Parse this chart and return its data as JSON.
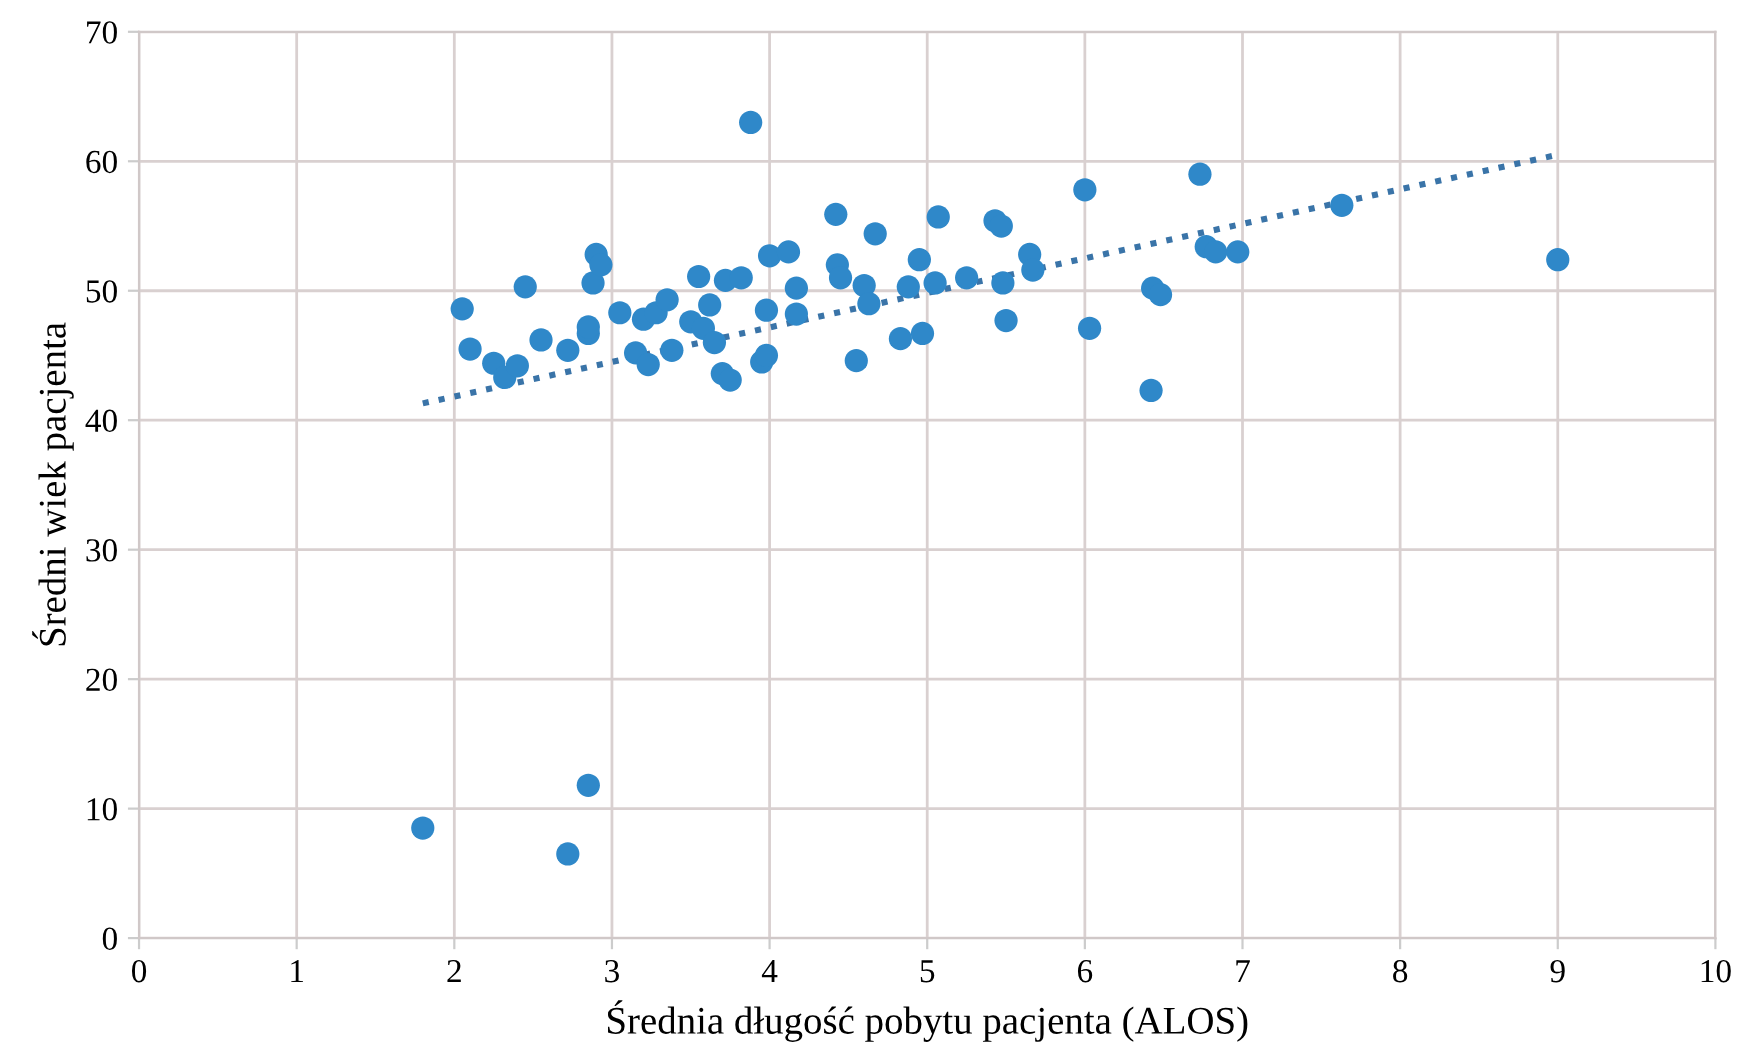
{
  "chart_data": {
    "type": "scatter",
    "xlabel": "Średnia długość pobytu pacjenta (ALOS)",
    "ylabel": "Średni wiek pacjenta",
    "xlim": [
      0,
      10
    ],
    "ylim": [
      0,
      70
    ],
    "xticks": [
      0,
      1,
      2,
      3,
      4,
      5,
      6,
      7,
      8,
      9,
      10
    ],
    "yticks": [
      0,
      10,
      20,
      30,
      40,
      50,
      60,
      70
    ],
    "grid": true,
    "legend": false,
    "series": [
      {
        "color": "#2f88c9",
        "marker": "circle",
        "x": [
          1.8,
          2.72,
          2.85,
          2.05,
          2.1,
          2.25,
          2.32,
          2.4,
          2.45,
          2.55,
          2.72,
          2.85,
          2.85,
          2.88,
          2.9,
          2.93,
          3.05,
          3.15,
          3.2,
          3.23,
          3.28,
          3.35,
          3.38,
          3.5,
          3.55,
          3.58,
          3.62,
          3.65,
          3.7,
          3.75,
          3.72,
          3.82,
          3.88,
          3.95,
          3.98,
          3.98,
          4.0,
          4.12,
          4.17,
          4.17,
          4.42,
          4.43,
          4.45,
          4.55,
          4.6,
          4.63,
          4.67,
          4.83,
          4.88,
          4.95,
          4.97,
          5.05,
          5.07,
          5.25,
          5.43,
          5.47,
          5.48,
          5.5,
          5.65,
          5.67,
          6.0,
          6.03,
          6.42,
          6.43,
          6.48,
          6.73,
          6.77,
          6.83,
          6.97,
          7.63,
          9.0
        ],
        "values": [
          8.5,
          6.5,
          11.8,
          48.6,
          45.5,
          44.4,
          43.3,
          44.2,
          50.3,
          46.2,
          45.4,
          46.7,
          47.2,
          50.6,
          52.8,
          52,
          48.3,
          45.2,
          47.8,
          44.3,
          48.3,
          49.3,
          45.4,
          47.6,
          51.1,
          47.1,
          48.9,
          46,
          43.6,
          43.1,
          50.8,
          51,
          63,
          44.5,
          45,
          48.5,
          52.7,
          53,
          50.2,
          48.2,
          55.9,
          52,
          51,
          44.6,
          50.4,
          49,
          54.4,
          46.3,
          50.3,
          52.4,
          46.7,
          50.6,
          55.7,
          51,
          55.4,
          55,
          50.6,
          47.7,
          52.8,
          51.6,
          57.8,
          47.1,
          42.3,
          50.2,
          49.7,
          59,
          53.4,
          53,
          53,
          56.6,
          52.4
        ]
      },
      {
        "type": "line",
        "color": "#3a74a8",
        "line_style": "dotted",
        "marker": "none",
        "x": [
          1.8,
          9.0
        ],
        "values": [
          41.3,
          60.5
        ]
      }
    ]
  }
}
